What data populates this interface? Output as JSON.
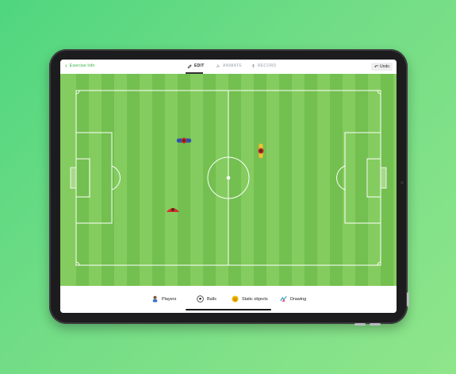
{
  "header": {
    "back_label": "Exercise Info",
    "tabs": [
      {
        "label": "EDIT",
        "active": true
      },
      {
        "label": "ANIMATE",
        "active": false
      },
      {
        "label": "RECORD",
        "active": false
      }
    ],
    "undo_label": "Undo"
  },
  "toolbar": {
    "items": [
      {
        "label": "Players",
        "icon": "player-icon"
      },
      {
        "label": "Balls",
        "icon": "soccer-ball-icon"
      },
      {
        "label": "Static objects",
        "icon": "smiley-icon"
      },
      {
        "label": "Drawing",
        "icon": "drawing-icon"
      }
    ]
  },
  "colors": {
    "background_green": "#5cd97f",
    "pitch_light": "#84cc5f",
    "pitch_dark": "#73bf50",
    "accent_green": "#3fb54a",
    "player_blue": "#2c4fb3",
    "player_red": "#d32f2f",
    "player_yellow": "#f2c230"
  }
}
